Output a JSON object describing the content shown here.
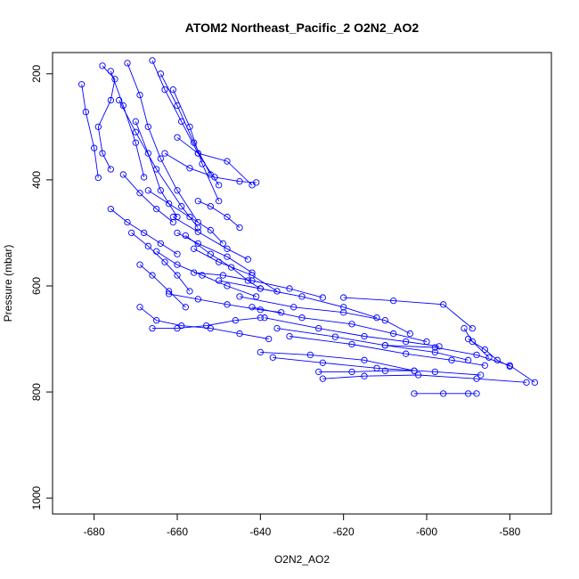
{
  "chart_data": {
    "type": "line",
    "title": "ATOM2 Northeast_Pacific_2 O2N2_AO2",
    "xlabel": "O2N2_AO2",
    "ylabel": "Pressure (mbar)",
    "xlim": [
      -690,
      -570
    ],
    "ylim": [
      1030,
      160
    ],
    "y_reversed": true,
    "x_ticks": [
      -680,
      -660,
      -640,
      -620,
      -600,
      -580
    ],
    "y_ticks": [
      200,
      400,
      600,
      800,
      1000
    ],
    "grid": false,
    "markers": "open-circle",
    "color": "#0000ff",
    "series": [
      {
        "x": [
          -678,
          -675,
          -676,
          -679,
          -678,
          -676
        ],
        "y": [
          185,
          210,
          250,
          300,
          350,
          380
        ]
      },
      {
        "x": [
          -683,
          -682,
          -680,
          -679
        ],
        "y": [
          220,
          272,
          340,
          396
        ]
      },
      {
        "x": [
          -672,
          -669,
          -667,
          -664,
          -660,
          -655
        ],
        "y": [
          180,
          240,
          300,
          360,
          420,
          480
        ]
      },
      {
        "x": [
          -666,
          -663,
          -659,
          -655,
          -650
        ],
        "y": [
          175,
          230,
          290,
          350,
          410
        ]
      },
      {
        "x": [
          -676,
          -673,
          -670,
          -668
        ],
        "y": [
          195,
          260,
          330,
          395
        ]
      },
      {
        "x": [
          -674,
          -670,
          -665,
          -659,
          -655
        ],
        "y": [
          250,
          310,
          380,
          450,
          490
        ]
      },
      {
        "x": [
          -670,
          -667,
          -664,
          -660
        ],
        "y": [
          290,
          350,
          420,
          470
        ]
      },
      {
        "x": [
          -660,
          -655,
          -648,
          -642
        ],
        "y": [
          320,
          350,
          365,
          410
        ]
      },
      {
        "x": [
          -663,
          -657,
          -651,
          -645,
          -641
        ],
        "y": [
          350,
          378,
          395,
          403,
          405
        ]
      },
      {
        "x": [
          -655,
          -652,
          -648,
          -645
        ],
        "y": [
          440,
          450,
          470,
          490
        ]
      },
      {
        "x": [
          -676,
          -672,
          -668,
          -664,
          -660
        ],
        "y": [
          455,
          480,
          500,
          520,
          540
        ]
      },
      {
        "x": [
          -671,
          -667,
          -663,
          -660,
          -657
        ],
        "y": [
          500,
          525,
          555,
          580,
          610
        ]
      },
      {
        "x": [
          -669,
          -666,
          -662,
          -658
        ],
        "y": [
          560,
          580,
          610,
          640
        ]
      },
      {
        "x": [
          -660,
          -655,
          -648,
          -642
        ],
        "y": [
          500,
          520,
          545,
          575
        ]
      },
      {
        "x": [
          -658,
          -652,
          -647,
          -643,
          -640
        ],
        "y": [
          505,
          540,
          565,
          590,
          605
        ]
      },
      {
        "x": [
          -665,
          -660,
          -654,
          -648,
          -641
        ],
        "y": [
          535,
          560,
          580,
          600,
          620
        ]
      },
      {
        "x": [
          -662,
          -655,
          -648,
          -640,
          -635
        ],
        "y": [
          615,
          625,
          635,
          645,
          650
        ]
      },
      {
        "x": [
          -669,
          -665,
          -659,
          -652,
          -645,
          -638
        ],
        "y": [
          640,
          665,
          675,
          680,
          690,
          700
        ]
      },
      {
        "x": [
          -666,
          -660,
          -653,
          -646,
          -640
        ],
        "y": [
          680,
          680,
          675,
          665,
          660
        ]
      },
      {
        "x": [
          -656,
          -649,
          -642,
          -633,
          -625
        ],
        "y": [
          575,
          580,
          590,
          605,
          622
        ]
      },
      {
        "x": [
          -650,
          -640,
          -630,
          -620,
          -612
        ],
        "y": [
          590,
          605,
          620,
          640,
          660
        ]
      },
      {
        "x": [
          -645,
          -632,
          -620,
          -610,
          -604
        ],
        "y": [
          620,
          640,
          650,
          665,
          690
        ]
      },
      {
        "x": [
          -642,
          -630,
          -618,
          -608,
          -600
        ],
        "y": [
          640,
          660,
          672,
          690,
          705
        ]
      },
      {
        "x": [
          -639,
          -626,
          -615,
          -605,
          -597
        ],
        "y": [
          660,
          680,
          695,
          705,
          714
        ]
      },
      {
        "x": [
          -636,
          -622,
          -610,
          -598,
          -590
        ],
        "y": [
          680,
          696,
          712,
          725,
          740
        ]
      },
      {
        "x": [
          -633,
          -618,
          -605,
          -594,
          -586
        ],
        "y": [
          695,
          710,
          728,
          740,
          750
        ]
      },
      {
        "x": [
          -640,
          -628,
          -615,
          -603
        ],
        "y": [
          725,
          730,
          740,
          760
        ]
      },
      {
        "x": [
          -637,
          -625,
          -612,
          -598,
          -587
        ],
        "y": [
          735,
          745,
          755,
          762,
          768
        ]
      },
      {
        "x": [
          -626,
          -618,
          -610,
          -603
        ],
        "y": [
          762,
          762,
          760,
          760
        ]
      },
      {
        "x": [
          -625,
          -615,
          -602,
          -588,
          -576
        ],
        "y": [
          775,
          770,
          768,
          775,
          782
        ]
      },
      {
        "x": [
          -603,
          -596,
          -590,
          -588
        ],
        "y": [
          803,
          803,
          803,
          803
        ]
      },
      {
        "x": [
          -610,
          -598,
          -588,
          -580,
          -574
        ],
        "y": [
          712,
          716,
          730,
          750,
          782
        ]
      },
      {
        "x": [
          -590,
          -586,
          -583,
          -580
        ],
        "y": [
          700,
          720,
          740,
          752
        ]
      },
      {
        "x": [
          -591,
          -589,
          -585
        ],
        "y": [
          680,
          705,
          735
        ]
      },
      {
        "x": [
          -620,
          -608,
          -596,
          -589
        ],
        "y": [
          622,
          628,
          635,
          680
        ]
      },
      {
        "x": [
          -656,
          -650,
          -642,
          -636
        ],
        "y": [
          530,
          555,
          580,
          610
        ]
      },
      {
        "x": [
          -661,
          -655,
          -648,
          -643
        ],
        "y": [
          470,
          498,
          530,
          550
        ]
      },
      {
        "x": [
          -667,
          -662,
          -657,
          -652,
          -649
        ],
        "y": [
          420,
          445,
          470,
          495,
          520
        ]
      },
      {
        "x": [
          -673,
          -669,
          -665,
          -661
        ],
        "y": [
          390,
          425,
          455,
          480
        ]
      },
      {
        "x": [
          -664,
          -660,
          -656,
          -652
        ],
        "y": [
          200,
          260,
          330,
          390
        ]
      },
      {
        "x": [
          -661,
          -657,
          -654,
          -650
        ],
        "y": [
          230,
          300,
          370,
          440
        ]
      }
    ]
  }
}
